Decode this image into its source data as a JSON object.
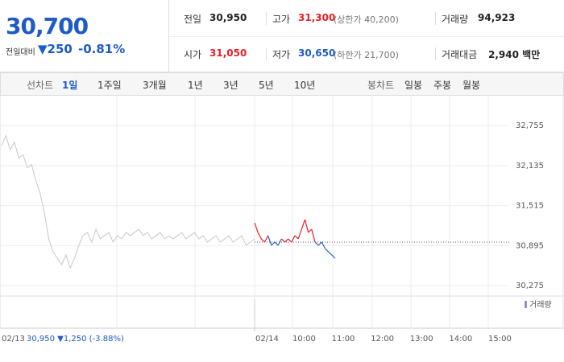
{
  "header": {
    "price": "30,700",
    "change_label": "전일대비",
    "change": "▼250",
    "change_rate": "-0.81%",
    "stats": [
      {
        "label": "전일",
        "value": "30,950"
      },
      {
        "label": "고가",
        "value": "31,300",
        "note": "(상한가 40,200)"
      },
      {
        "label": "거래량",
        "value": "94,923"
      },
      {
        "label": "시가",
        "value": "31,050"
      },
      {
        "label": "저가",
        "value": "30,650",
        "note": "(하한가 21,700)"
      },
      {
        "label": "거래대금",
        "value": "2,940 백만"
      }
    ]
  },
  "toolbar": {
    "line_label": "선차트",
    "periods": [
      "1일",
      "1주일",
      "3개월",
      "1년",
      "3년",
      "5년",
      "10년"
    ],
    "candle_label": "봉차트",
    "candles": [
      "일봉",
      "주봉",
      "월봉"
    ]
  },
  "chart": {
    "ylim": [
      30140,
      33080
    ],
    "yticks": [
      {
        "value": 32755,
        "label": "32,755"
      },
      {
        "value": 32135,
        "label": "32,135"
      },
      {
        "value": 31515,
        "label": "31,515"
      },
      {
        "value": 30895,
        "label": "30,895"
      },
      {
        "value": 30275,
        "label": "30,275"
      }
    ],
    "reference": 30950,
    "prev_day": {
      "color": "#c8c8c8",
      "values": [
        32450,
        32600,
        32380,
        32500,
        32250,
        32300,
        32100,
        32150,
        31900,
        31700,
        31400,
        31000,
        30800,
        30700,
        30600,
        30750,
        30550,
        30700,
        30900,
        31050,
        31100,
        30950,
        31150,
        31000,
        31050,
        31100,
        30950,
        31050,
        31000,
        31100,
        31050,
        31100,
        31150,
        31050,
        31100,
        31000,
        31050,
        31100,
        31000,
        31050,
        31000,
        31050,
        31100,
        31000,
        31050,
        31100,
        31000,
        31050,
        30950,
        31000,
        31050,
        30950,
        31000,
        31050,
        30950,
        31000,
        31050,
        30900,
        30950,
        31000
      ]
    },
    "today": {
      "up_color": "#e8212a",
      "down_color": "#2a62c9",
      "values": [
        31250,
        31100,
        31000,
        30950,
        31050,
        30900,
        30950,
        30900,
        31000,
        30950,
        31000,
        30950,
        31050,
        31000,
        31150,
        31300,
        31100,
        31150,
        30950,
        30900,
        30950,
        30850,
        30800,
        30750,
        30700
      ]
    },
    "volume_label": "거래량",
    "prev_date": "02/13",
    "prev_summary": "30,950 ▼1,250 (-3.88%)",
    "today_date": "02/14",
    "times": [
      "10:00",
      "11:00",
      "12:00",
      "13:00",
      "14:00",
      "15:00"
    ]
  }
}
